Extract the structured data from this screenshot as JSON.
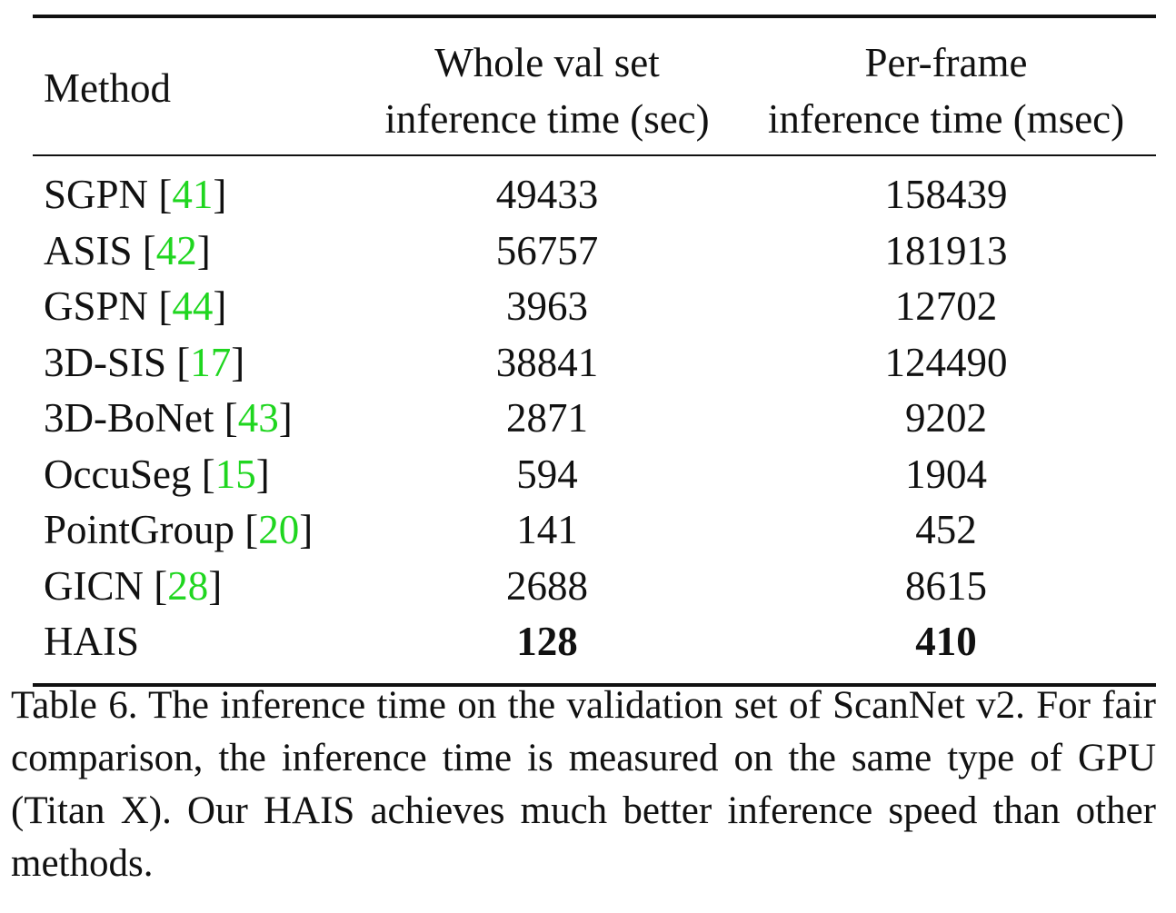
{
  "table": {
    "headers": {
      "method": "Method",
      "col1_line1": "Whole val set",
      "col1_line2": "inference time (sec)",
      "col2_line1": "Per-frame",
      "col2_line2": "inference time (msec)"
    },
    "rows": [
      {
        "method": "SGPN",
        "ref": "41",
        "whole_sec": "49433",
        "per_frame_msec": "158439"
      },
      {
        "method": "ASIS",
        "ref": "42",
        "whole_sec": "56757",
        "per_frame_msec": "181913"
      },
      {
        "method": "GSPN",
        "ref": "44",
        "whole_sec": "3963",
        "per_frame_msec": "12702"
      },
      {
        "method": "3D-SIS",
        "ref": "17",
        "whole_sec": "38841",
        "per_frame_msec": "124490"
      },
      {
        "method": "3D-BoNet",
        "ref": "43",
        "whole_sec": "2871",
        "per_frame_msec": "9202"
      },
      {
        "method": "OccuSeg",
        "ref": "15",
        "whole_sec": "594",
        "per_frame_msec": "1904"
      },
      {
        "method": "PointGroup",
        "ref": "20",
        "whole_sec": "141",
        "per_frame_msec": "452"
      },
      {
        "method": "GICN",
        "ref": "28",
        "whole_sec": "2688",
        "per_frame_msec": "8615"
      },
      {
        "method": "HAIS",
        "ref": "",
        "whole_sec": "128",
        "per_frame_msec": "410"
      }
    ]
  },
  "caption": "Table 6. The inference time on the validation set of ScanNet v2. For fair comparison, the inference time is measured on the same type of GPU (Titan X). Our HAIS achieves much better inference speed than other methods.",
  "colors": {
    "citation": "#1fd61f",
    "text": "#111111"
  }
}
